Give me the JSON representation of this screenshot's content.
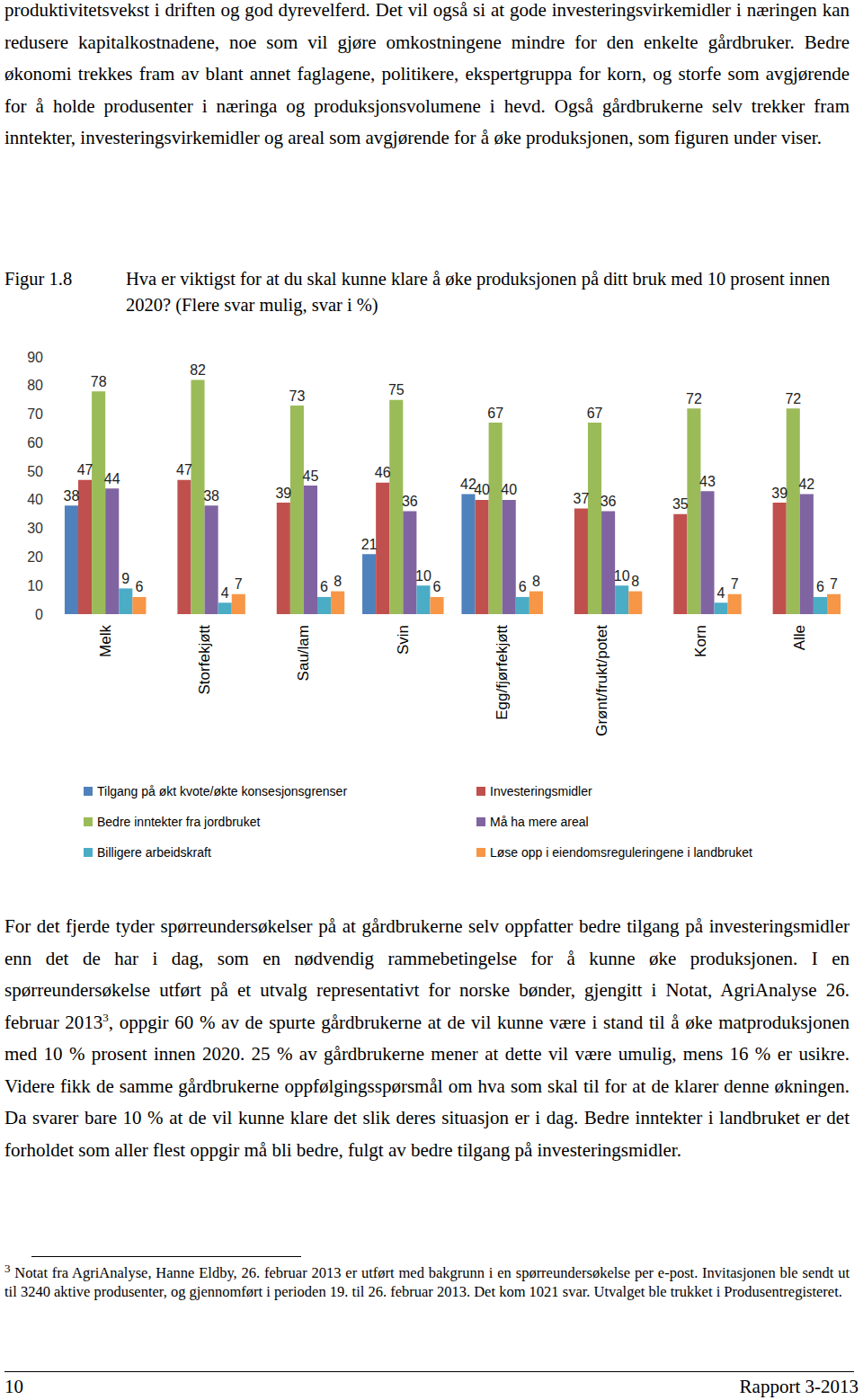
{
  "document": {
    "paragraph_1": "produktivitetsvekst i driften og god dyrevelferd. Det vil også si at gode investeringsvirkemidler i næringen kan redusere kapitalkostnadene, noe som vil gjøre omkostningene mindre for den enkelte gårdbruker. Bedre økonomi trekkes fram av blant annet faglagene, politikere, ekspertgruppa for korn, og storfe som avgjørende for å holde produsenter i næringa og produksjonsvolumene i hevd. Også gårdbrukerne selv trekker fram inntekter, investeringsvirkemidler og areal som avgjørende for å øke produksjonen, som figuren under viser.",
    "figure_number": "Figur 1.8",
    "figure_caption": "Hva er viktigst for at du skal kunne klare å øke produksjonen på ditt bruk med 10 prosent innen 2020? (Flere svar mulig, svar i %)",
    "paragraph_2": {
      "before": "For det fjerde tyder spørreundersøkelser på at gårdbrukerne selv oppfatter bedre tilgang på investeringsmidler enn det de har i dag, som en nødvendig rammebetingelse for å kunne øke produksjonen. I en spørreundersøkelse utført på et utvalg representativt for norske bønder, gjengitt i Notat, AgriAnalyse 26. februar 2013",
      "ref": "3",
      "after": ", oppgir 60 % av de spurte gårdbrukerne at de vil kunne være i stand til å øke matproduksjonen med 10 % prosent innen 2020. 25 % av gårdbrukerne mener at dette vil være umulig, mens 16 % er usikre. Videre fikk de samme gårdbrukerne oppfølgingsspørsmål om hva som skal til for at de klarer denne økningen. Da svarer bare 10 % at de vil kunne klare det slik deres situasjon er i dag. Bedre inntekter i landbruket er det forholdet som aller flest oppgir må bli bedre, fulgt av bedre tilgang på investeringsmidler."
    },
    "footnote": {
      "marker": "3",
      "text": "Notat fra AgriAnalyse, Hanne Eldby, 26. februar 2013 er utført med bakgrunn i en spørreundersøkelse per e-post. Invitasjonen ble sendt ut til 3240 aktive produsenter, og gjennomført i perioden 19. til 26. februar 2013. Det kom 1021 svar. Utvalget ble trukket i Produsentregisteret."
    },
    "footer": {
      "page": "10",
      "report": "Rapport 3-2013"
    }
  },
  "chart_data": {
    "type": "bar",
    "categories": [
      "Melk",
      "Storfekjøtt",
      "Sau/lam",
      "Svin",
      "Egg/fjørfekjøtt",
      "Grønt/frukt/potet",
      "Korn",
      "Alle"
    ],
    "series": [
      {
        "name": "Tilgang på økt kvote/økte konsesjonsgrenser",
        "color": "#4F81BD",
        "values": [
          38,
          null,
          null,
          21,
          42,
          null,
          null,
          null
        ]
      },
      {
        "name": "Investeringsmidler",
        "color": "#C0504D",
        "values": [
          47,
          47,
          39,
          46,
          40,
          37,
          35,
          39
        ]
      },
      {
        "name": "Bedre inntekter fra jordbruket",
        "color": "#9BBB59",
        "values": [
          78,
          82,
          73,
          75,
          67,
          67,
          72,
          72
        ]
      },
      {
        "name": "Må ha mere areal",
        "color": "#8064A2",
        "values": [
          44,
          38,
          45,
          36,
          40,
          36,
          43,
          42
        ]
      },
      {
        "name": "Billigere arbeidskraft",
        "color": "#4BACC6",
        "values": [
          9,
          4,
          6,
          10,
          6,
          10,
          4,
          6
        ]
      },
      {
        "name": "Løse opp i eiendomsreguleringene i landbruket",
        "color": "#F79646",
        "values": [
          6,
          7,
          8,
          6,
          8,
          8,
          7,
          7
        ]
      }
    ],
    "ylim": [
      0,
      90
    ],
    "yticks": [
      0,
      10,
      20,
      30,
      40,
      50,
      60,
      70,
      80,
      90
    ],
    "grid": false,
    "legend": "bottom",
    "data_labels": true
  }
}
